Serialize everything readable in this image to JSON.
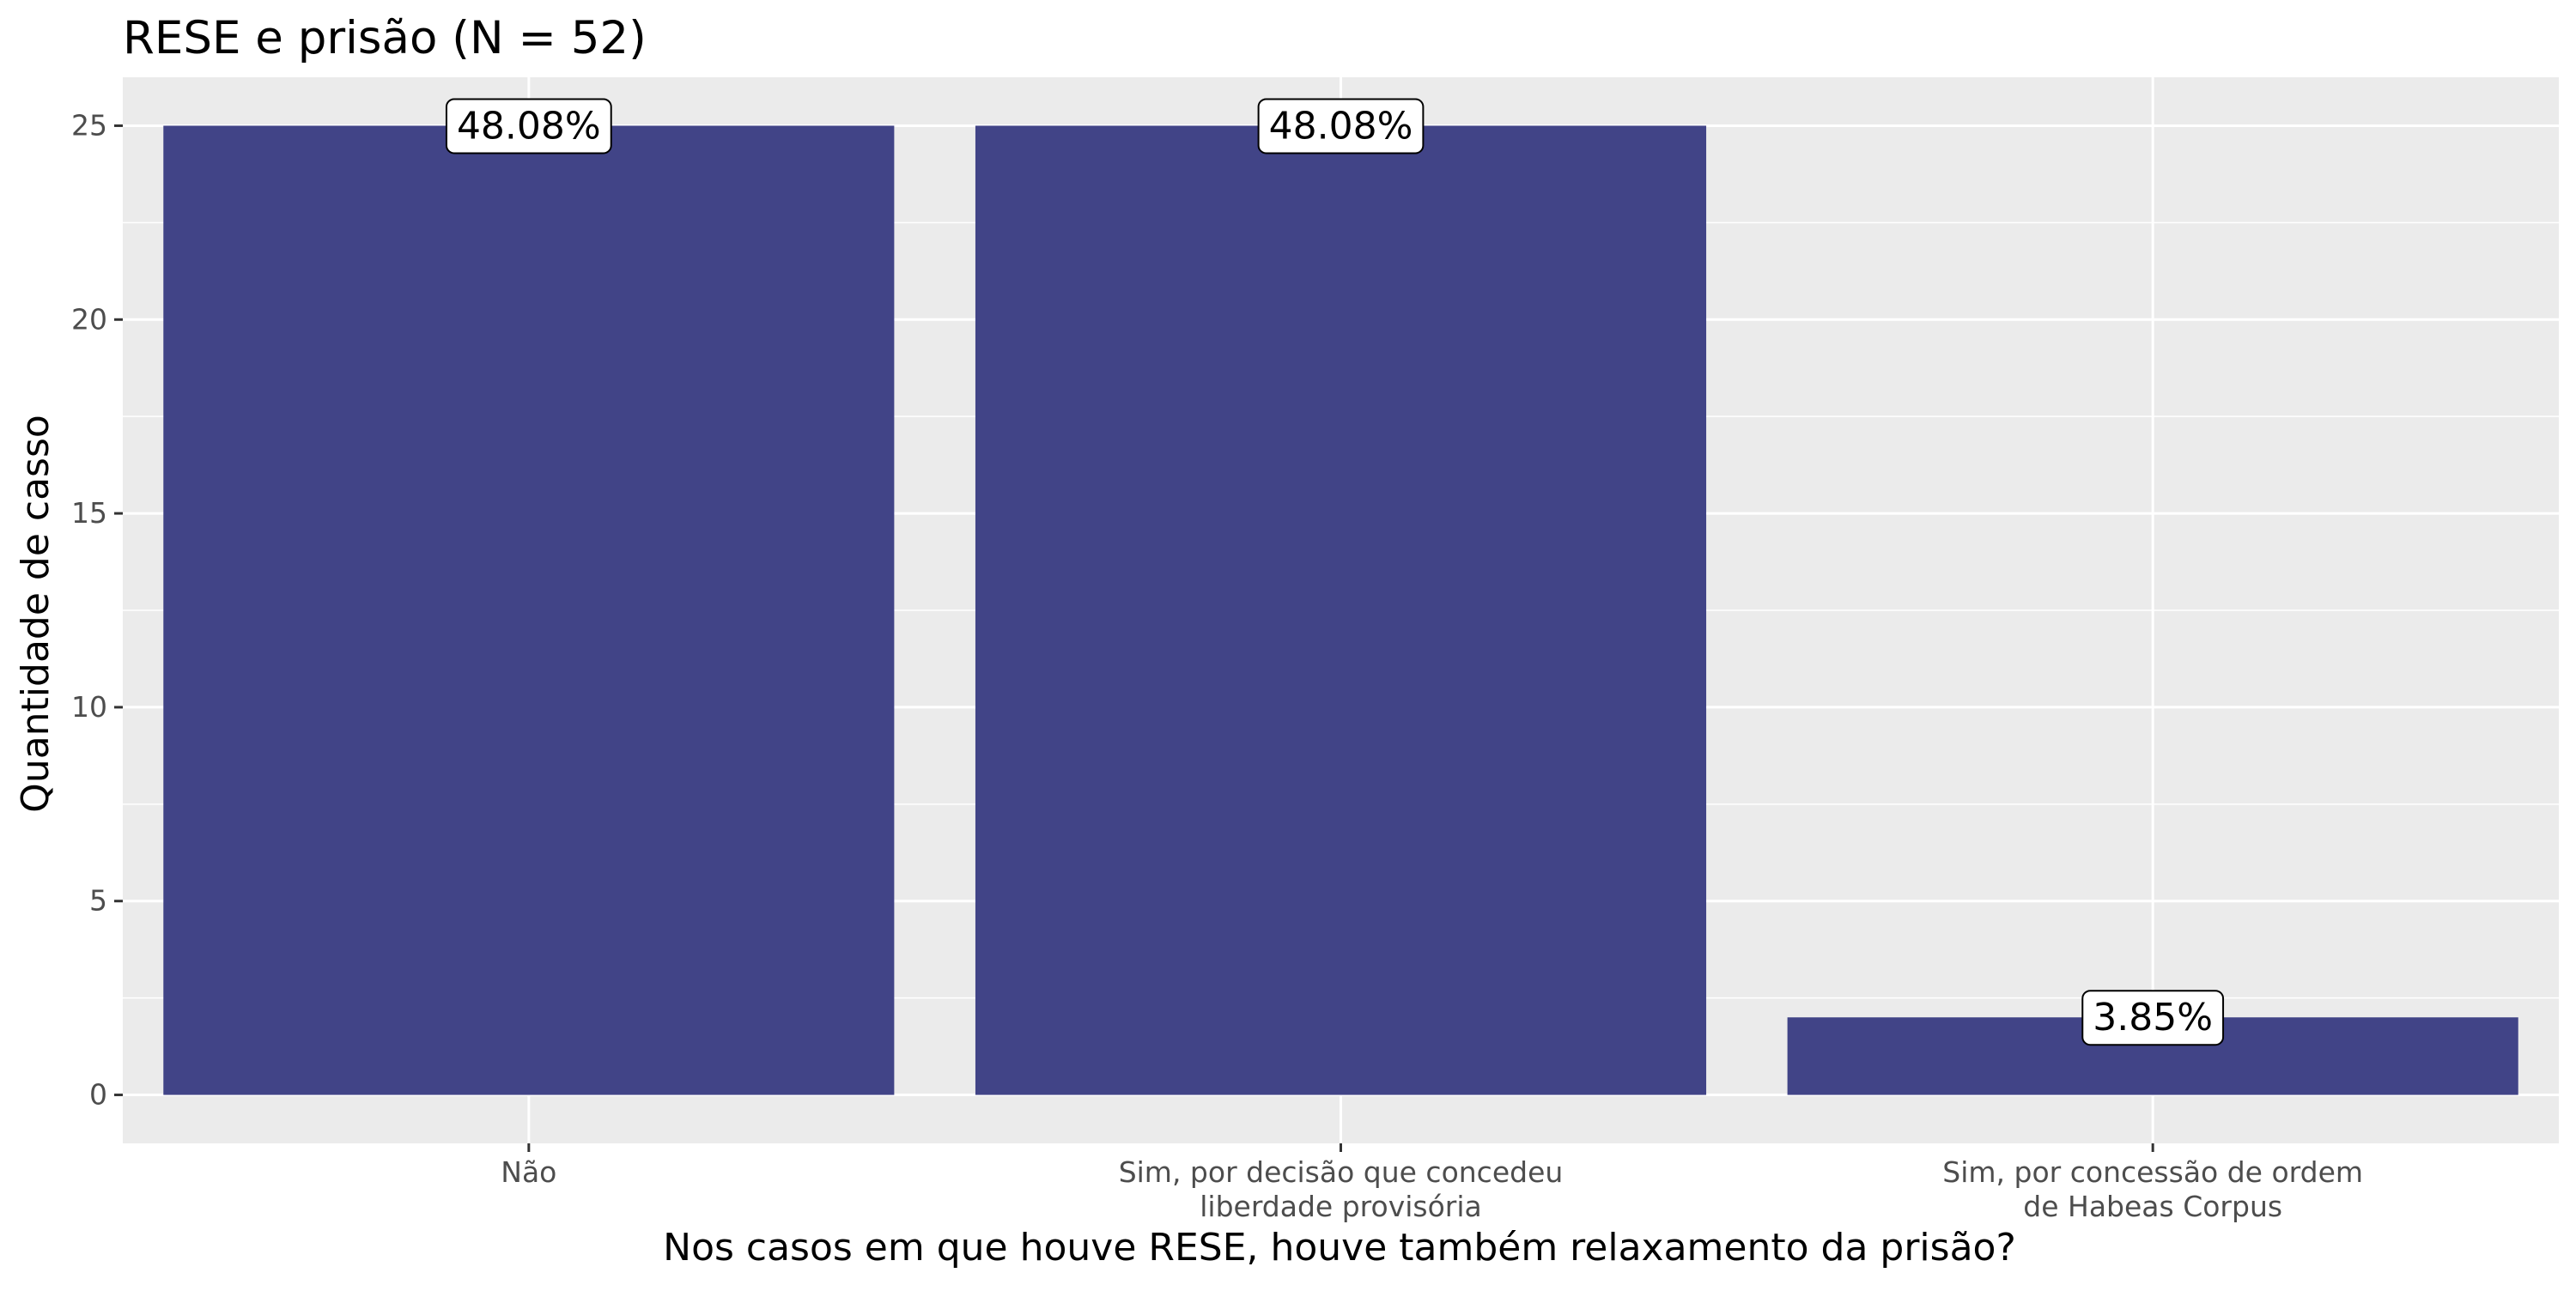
{
  "chart_data": {
    "type": "bar",
    "title": "RESE e prisão (N = 52)",
    "xlabel": "Nos casos em que houve RESE, houve também relaxamento da prisão?",
    "ylabel": "Quantidade de casso",
    "categories": [
      [
        "Não"
      ],
      [
        "Sim, por decisão que concedeu",
        "liberdade provisória"
      ],
      [
        "Sim, por concessão de ordem",
        "de Habeas Corpus"
      ]
    ],
    "values": [
      25,
      25,
      2
    ],
    "data_labels": [
      "48.08%",
      "48.08%",
      "3.85%"
    ],
    "yticks": [
      0,
      5,
      10,
      15,
      20,
      25
    ],
    "ylim": [
      -1.25,
      26.25
    ],
    "grid": true,
    "legend": "none",
    "colors": {
      "bar": "#414487",
      "panel": "#ebebeb",
      "grid": "#ffffff",
      "tick_text": "#4d4d4d"
    }
  }
}
